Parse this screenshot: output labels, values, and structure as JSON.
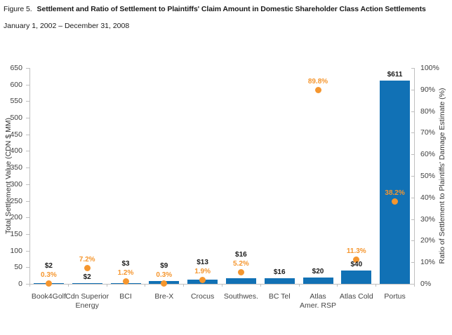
{
  "figure": {
    "label": "Figure 5.",
    "title": "Settlement and Ratio of Settlement to Plaintiffs' Claim Amount in Domestic Shareholder Class Action Settlements",
    "subtitle": "January 1, 2002 – December 31, 2008"
  },
  "colors": {
    "bar_blue": "#1171B5",
    "dot_orange": "#F5962E",
    "axis_gray": "#BFBFBF",
    "text_dark": "#1A1A1A"
  },
  "chart_data": {
    "type": "bar",
    "subtype": "bar-with-scatter-overlay",
    "title": "Settlement and Ratio of Settlement to Plaintiffs' Claim Amount in Domestic Shareholder Class Action Settlements",
    "subtitle": "January 1, 2002 – December 31, 2008",
    "categories": [
      "Book4Golf",
      "Cdn Superior\nEnergy",
      "BCI",
      "Bre-X",
      "Crocus",
      "Southwes.",
      "BC Tel",
      "Atlas\nAmer. RSP",
      "Atlas Cold",
      "Portus"
    ],
    "series": [
      {
        "name": "Total Settlement Value",
        "type": "bar",
        "unit": "CDN $ MM",
        "color": "#1171B5",
        "values": [
          2,
          2,
          3,
          9,
          13,
          16,
          16,
          20,
          40,
          611
        ],
        "labels": [
          "$2",
          "$2",
          "$3",
          "$9",
          "$13",
          "$16",
          "$16",
          "$20",
          "$40",
          "$611"
        ]
      },
      {
        "name": "Ratio of Settlement to Plaintiffs' Damage Estimate",
        "type": "scatter",
        "unit": "%",
        "color": "#F5962E",
        "values": [
          0.3,
          7.2,
          1.2,
          0.3,
          1.9,
          5.2,
          null,
          89.8,
          11.3,
          38.2
        ],
        "labels": [
          "0.3%",
          "7.2%",
          "1.2%",
          "0.3%",
          "1.9%",
          "5.2%",
          null,
          "89.8%",
          "11.3%",
          "38.2%"
        ]
      }
    ],
    "y_left": {
      "label": "Total Settlement Value (CDN $ MM)",
      "min": 0,
      "max": 650,
      "step": 50
    },
    "y_right": {
      "label": "Ratio of Settlement to Plaintiffs' Damage Estimate (%)",
      "min": 0,
      "max": 100,
      "step": 10,
      "suffix": "%"
    },
    "grid": false,
    "legend": "none"
  }
}
